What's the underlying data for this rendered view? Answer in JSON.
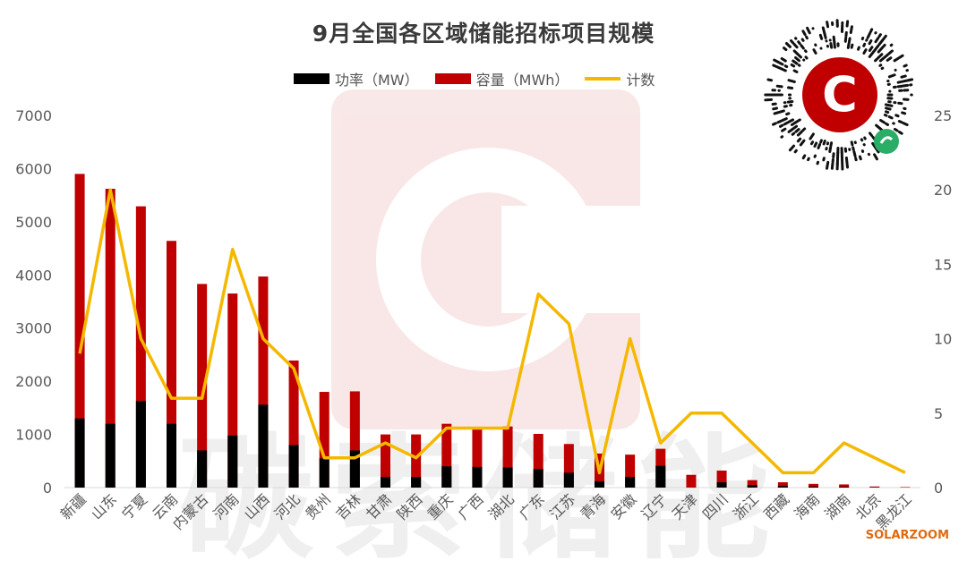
{
  "chart_data": {
    "type": "bar",
    "title": "9月全国各区域储能招标项目规模",
    "categories": [
      "新疆",
      "山东",
      "宁夏",
      "云南",
      "内蒙古",
      "河南",
      "山西",
      "河北",
      "贵州",
      "吉林",
      "甘肃",
      "陕西",
      "重庆",
      "广西",
      "湖北",
      "广东",
      "江苏",
      "青海",
      "安徽",
      "辽宁",
      "天津",
      "四川",
      "浙江",
      "西藏",
      "海南",
      "湖南",
      "北京",
      "黑龙江"
    ],
    "series": [
      {
        "name": "功率（MW）",
        "kind": "bar",
        "axis": "left",
        "color": "#000000",
        "values": [
          1300,
          1200,
          1630,
          1200,
          700,
          980,
          1560,
          800,
          550,
          700,
          200,
          200,
          400,
          390,
          380,
          350,
          280,
          120,
          200,
          410,
          0,
          100,
          50,
          30,
          20,
          15,
          5,
          0
        ]
      },
      {
        "name": "容量（MWh）",
        "kind": "bar",
        "axis": "left",
        "color": "#c00000",
        "values": [
          5900,
          5620,
          5290,
          4640,
          3830,
          3650,
          3970,
          2390,
          1800,
          1810,
          1000,
          1000,
          1200,
          1100,
          1150,
          1010,
          820,
          640,
          620,
          730,
          240,
          320,
          140,
          100,
          70,
          60,
          20,
          10
        ]
      },
      {
        "name": "计数",
        "kind": "line",
        "axis": "right",
        "color": "#f5b800",
        "values": [
          9,
          20,
          10,
          6,
          6,
          16,
          10,
          8,
          2,
          2,
          3,
          2,
          4,
          4,
          4,
          13,
          11,
          1,
          10,
          3,
          5,
          5,
          3,
          1,
          1,
          3,
          2,
          1
        ]
      }
    ],
    "yleft": {
      "min": 0,
      "max": 7000,
      "ticks": [
        0,
        1000,
        2000,
        3000,
        4000,
        5000,
        6000,
        7000
      ]
    },
    "yright": {
      "min": 0,
      "max": 25,
      "ticks": [
        0,
        5,
        10,
        15,
        20,
        25
      ]
    },
    "legend": "top-center",
    "grid": false
  },
  "watermark": {
    "text": "碳索储能"
  },
  "qr": {
    "logo_letter": "C"
  },
  "source_label": "SOLARZOOM"
}
